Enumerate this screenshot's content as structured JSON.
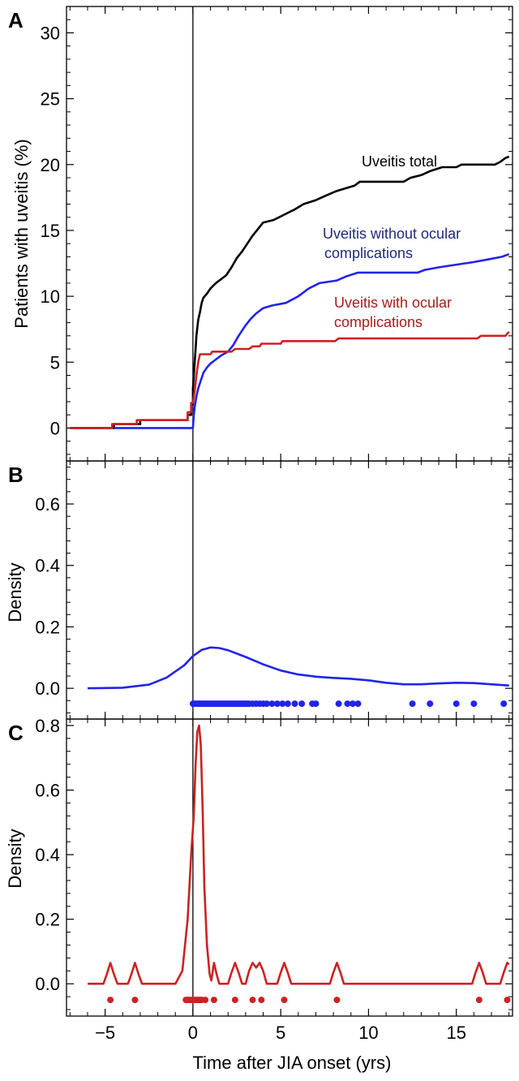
{
  "chart_data": [
    {
      "type": "line",
      "panel_label": "A",
      "ylabel": "Patients with uveitis (%)",
      "xlim": [
        -7.2,
        18.2
      ],
      "ylim": [
        -2.5,
        32
      ],
      "yticks": [
        0,
        5,
        10,
        15,
        20,
        25,
        30
      ],
      "vline_x": 0,
      "series": [
        {
          "name": "Uveitis total",
          "color": "#000000",
          "points": [
            [
              -7,
              0
            ],
            [
              -4.5,
              0
            ],
            [
              -4.5,
              0.3
            ],
            [
              -3,
              0.3
            ],
            [
              -3,
              0.6
            ],
            [
              -0.3,
              0.6
            ],
            [
              -0.3,
              1.0
            ],
            [
              -0.1,
              1.0
            ],
            [
              -0.1,
              1.8
            ],
            [
              0,
              1.8
            ],
            [
              0,
              3.0
            ],
            [
              0.05,
              4.0
            ],
            [
              0.1,
              5.0
            ],
            [
              0.15,
              6.0
            ],
            [
              0.2,
              7.0
            ],
            [
              0.25,
              7.6
            ],
            [
              0.3,
              8.2
            ],
            [
              0.4,
              8.8
            ],
            [
              0.5,
              9.5
            ],
            [
              0.6,
              9.9
            ],
            [
              0.8,
              10.2
            ],
            [
              1.0,
              10.6
            ],
            [
              1.3,
              11.0
            ],
            [
              1.6,
              11.3
            ],
            [
              1.9,
              11.6
            ],
            [
              2.2,
              12.2
            ],
            [
              2.5,
              12.9
            ],
            [
              2.8,
              13.4
            ],
            [
              3.1,
              14.0
            ],
            [
              3.4,
              14.6
            ],
            [
              3.7,
              15.1
            ],
            [
              4.0,
              15.6
            ],
            [
              4.6,
              15.8
            ],
            [
              5.2,
              16.2
            ],
            [
              5.8,
              16.6
            ],
            [
              6.3,
              17.0
            ],
            [
              7.0,
              17.3
            ],
            [
              7.5,
              17.6
            ],
            [
              8.2,
              18.0
            ],
            [
              9.2,
              18.4
            ],
            [
              9.5,
              18.7
            ],
            [
              12.0,
              18.7
            ],
            [
              12.4,
              19.0
            ],
            [
              13.0,
              19.2
            ],
            [
              13.5,
              19.5
            ],
            [
              14.2,
              19.8
            ],
            [
              15.0,
              19.8
            ],
            [
              15.3,
              20.0
            ],
            [
              17.2,
              20.0
            ],
            [
              17.5,
              20.2
            ],
            [
              17.8,
              20.5
            ],
            [
              18.0,
              20.6
            ]
          ]
        },
        {
          "name": "Uveitis without ocular complications",
          "color": "#2222ee",
          "points": [
            [
              -4.5,
              0
            ],
            [
              0,
              0
            ],
            [
              0.05,
              1.0
            ],
            [
              0.1,
              1.6
            ],
            [
              0.2,
              2.4
            ],
            [
              0.3,
              3.0
            ],
            [
              0.45,
              3.6
            ],
            [
              0.6,
              4.2
            ],
            [
              0.8,
              4.6
            ],
            [
              1.0,
              4.9
            ],
            [
              1.3,
              5.2
            ],
            [
              1.6,
              5.5
            ],
            [
              2.0,
              5.8
            ],
            [
              2.3,
              6.3
            ],
            [
              2.6,
              7.0
            ],
            [
              3.0,
              7.8
            ],
            [
              3.3,
              8.3
            ],
            [
              3.6,
              8.7
            ],
            [
              4.0,
              9.1
            ],
            [
              4.5,
              9.3
            ],
            [
              5.3,
              9.5
            ],
            [
              6.0,
              10.0
            ],
            [
              6.6,
              10.6
            ],
            [
              7.2,
              11.0
            ],
            [
              8.2,
              11.2
            ],
            [
              8.7,
              11.5
            ],
            [
              9.4,
              11.8
            ],
            [
              12.8,
              11.8
            ],
            [
              13.2,
              12.0
            ],
            [
              14.0,
              12.2
            ],
            [
              15.0,
              12.4
            ],
            [
              16.0,
              12.6
            ],
            [
              16.8,
              12.8
            ],
            [
              17.6,
              13.0
            ],
            [
              18.0,
              13.2
            ]
          ]
        },
        {
          "name": "Uveitis with ocular complications",
          "color": "#cc2222",
          "points": [
            [
              -7,
              0
            ],
            [
              -4.6,
              0
            ],
            [
              -4.6,
              0.3
            ],
            [
              -3.2,
              0.3
            ],
            [
              -3.2,
              0.6
            ],
            [
              -0.3,
              0.6
            ],
            [
              -0.3,
              1.2
            ],
            [
              -0.1,
              1.2
            ],
            [
              -0.1,
              1.9
            ],
            [
              0,
              1.9
            ],
            [
              0.1,
              2.8
            ],
            [
              0.2,
              4.0
            ],
            [
              0.3,
              5.0
            ],
            [
              0.4,
              5.6
            ],
            [
              1.0,
              5.6
            ],
            [
              1.1,
              5.8
            ],
            [
              2.2,
              5.8
            ],
            [
              2.4,
              6.0
            ],
            [
              3.2,
              6.0
            ],
            [
              3.4,
              6.2
            ],
            [
              3.8,
              6.2
            ],
            [
              3.9,
              6.4
            ],
            [
              5.0,
              6.4
            ],
            [
              5.1,
              6.6
            ],
            [
              8.1,
              6.6
            ],
            [
              8.3,
              6.8
            ],
            [
              16.2,
              6.8
            ],
            [
              16.4,
              7.0
            ],
            [
              17.8,
              7.0
            ],
            [
              18.0,
              7.3
            ]
          ]
        }
      ],
      "annotations": [
        {
          "text": "Uveitis total",
          "color": "#000000"
        },
        {
          "text": "Uveitis without ocular",
          "color": "#1f2a78"
        },
        {
          "text": "complications",
          "color": "#1f2a78"
        },
        {
          "text": "Uveitis with ocular",
          "color": "#a61c1c"
        },
        {
          "text": "complications",
          "color": "#a61c1c"
        }
      ]
    },
    {
      "type": "line",
      "panel_label": "B",
      "ylabel": "Density",
      "xlim": [
        -7.2,
        18.2
      ],
      "ylim": [
        -0.1,
        0.74
      ],
      "yticks": [
        0.0,
        0.2,
        0.4,
        0.6
      ],
      "ytick_labels": [
        "0.0",
        "0.2",
        "0.4",
        "0.6"
      ],
      "vline_x": 0,
      "series": [
        {
          "color": "#2222ee",
          "points": [
            [
              -6,
              0.0
            ],
            [
              -4,
              0.002
            ],
            [
              -2.5,
              0.012
            ],
            [
              -1.5,
              0.035
            ],
            [
              -0.5,
              0.075
            ],
            [
              0,
              0.105
            ],
            [
              0.5,
              0.125
            ],
            [
              1.0,
              0.133
            ],
            [
              1.5,
              0.131
            ],
            [
              2.0,
              0.124
            ],
            [
              3.0,
              0.102
            ],
            [
              4.0,
              0.078
            ],
            [
              5.0,
              0.058
            ],
            [
              6.0,
              0.045
            ],
            [
              7.0,
              0.038
            ],
            [
              8.0,
              0.034
            ],
            [
              9.0,
              0.031
            ],
            [
              10.0,
              0.026
            ],
            [
              11.0,
              0.018
            ],
            [
              12.0,
              0.013
            ],
            [
              13.0,
              0.013
            ],
            [
              14.0,
              0.016
            ],
            [
              15.0,
              0.018
            ],
            [
              16.0,
              0.017
            ],
            [
              17.0,
              0.013
            ],
            [
              18.0,
              0.009
            ]
          ]
        }
      ],
      "rug": {
        "y": -0.05,
        "color": "#2222ee",
        "x": [
          0,
          0.1,
          0.2,
          0.3,
          0.4,
          0.5,
          0.6,
          0.7,
          0.8,
          0.9,
          1.0,
          1.1,
          1.2,
          1.3,
          1.4,
          1.5,
          1.6,
          1.7,
          1.8,
          1.9,
          2.0,
          2.1,
          2.2,
          2.3,
          2.4,
          2.5,
          2.6,
          2.7,
          2.8,
          2.9,
          3.0,
          3.1,
          3.2,
          3.4,
          3.6,
          3.8,
          4.0,
          4.2,
          4.5,
          4.8,
          5.1,
          5.4,
          5.8,
          6.2,
          6.8,
          7.0,
          8.3,
          8.8,
          9.1,
          9.4,
          12.5,
          13.5,
          15.0,
          16.0,
          17.7
        ]
      }
    },
    {
      "type": "line",
      "panel_label": "C",
      "ylabel": "Density",
      "xlabel": "Time after JIA onset (yrs)",
      "xlim": [
        -7.2,
        18.2
      ],
      "ylim": [
        -0.1,
        0.82
      ],
      "xticks": [
        -5,
        0,
        5,
        10,
        15
      ],
      "xtick_labels": [
        "−5",
        "0",
        "5",
        "10",
        "15"
      ],
      "yticks": [
        0.0,
        0.2,
        0.4,
        0.6,
        0.8
      ],
      "ytick_labels": [
        "0.0",
        "0.2",
        "0.4",
        "0.6",
        "0.8"
      ],
      "vline_x": 0,
      "series": [
        {
          "color": "#cc2222",
          "points": [
            [
              -6,
              0
            ],
            [
              -5.1,
              0
            ],
            [
              -4.9,
              0.03
            ],
            [
              -4.7,
              0.065
            ],
            [
              -4.5,
              0.03
            ],
            [
              -4.3,
              0
            ],
            [
              -3.7,
              0
            ],
            [
              -3.5,
              0.03
            ],
            [
              -3.3,
              0.065
            ],
            [
              -3.1,
              0.03
            ],
            [
              -2.9,
              0
            ],
            [
              -1.0,
              0
            ],
            [
              -0.6,
              0.04
            ],
            [
              -0.3,
              0.2
            ],
            [
              -0.1,
              0.4
            ],
            [
              0.05,
              0.52
            ],
            [
              0.15,
              0.68
            ],
            [
              0.25,
              0.78
            ],
            [
              0.35,
              0.8
            ],
            [
              0.45,
              0.74
            ],
            [
              0.55,
              0.55
            ],
            [
              0.65,
              0.3
            ],
            [
              0.8,
              0.12
            ],
            [
              0.95,
              0.03
            ],
            [
              1.05,
              0.01
            ],
            [
              1.2,
              0.065
            ],
            [
              1.35,
              0.03
            ],
            [
              1.5,
              0
            ],
            [
              2.0,
              0
            ],
            [
              2.2,
              0.035
            ],
            [
              2.4,
              0.065
            ],
            [
              2.6,
              0.035
            ],
            [
              2.8,
              0
            ],
            [
              3.0,
              0
            ],
            [
              3.2,
              0.04
            ],
            [
              3.4,
              0.065
            ],
            [
              3.6,
              0.05
            ],
            [
              3.8,
              0.065
            ],
            [
              4.0,
              0.04
            ],
            [
              4.2,
              0
            ],
            [
              4.8,
              0
            ],
            [
              5.0,
              0.035
            ],
            [
              5.2,
              0.065
            ],
            [
              5.4,
              0.035
            ],
            [
              5.6,
              0
            ],
            [
              7.8,
              0
            ],
            [
              8.0,
              0.035
            ],
            [
              8.2,
              0.065
            ],
            [
              8.4,
              0.035
            ],
            [
              8.6,
              0
            ],
            [
              15.9,
              0
            ],
            [
              16.1,
              0.035
            ],
            [
              16.3,
              0.065
            ],
            [
              16.5,
              0.035
            ],
            [
              16.7,
              0
            ],
            [
              17.5,
              0
            ],
            [
              17.7,
              0.035
            ],
            [
              17.9,
              0.065
            ],
            [
              18.0,
              0.06
            ]
          ]
        }
      ],
      "rug": {
        "y": -0.05,
        "color": "#cc2222",
        "x": [
          -4.7,
          -3.3,
          -0.4,
          -0.3,
          -0.2,
          -0.1,
          0,
          0.1,
          0.2,
          0.3,
          0.4,
          0.5,
          0.7,
          1.2,
          2.4,
          3.4,
          3.9,
          5.2,
          8.2,
          16.3,
          17.9
        ]
      }
    }
  ]
}
